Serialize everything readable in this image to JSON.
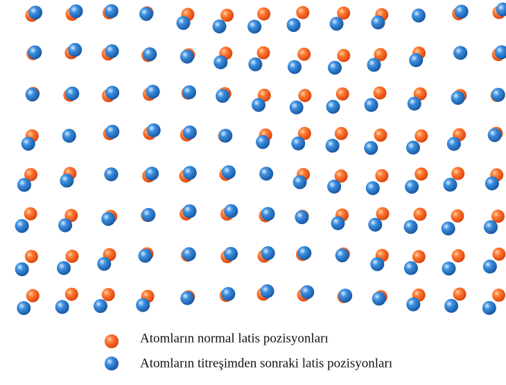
{
  "legend": {
    "items": [
      {
        "label": "Atomların normal latis pozisyonları"
      },
      {
        "label": "Atomların titreşimden sonraki latis pozisyonları"
      }
    ]
  }
}
